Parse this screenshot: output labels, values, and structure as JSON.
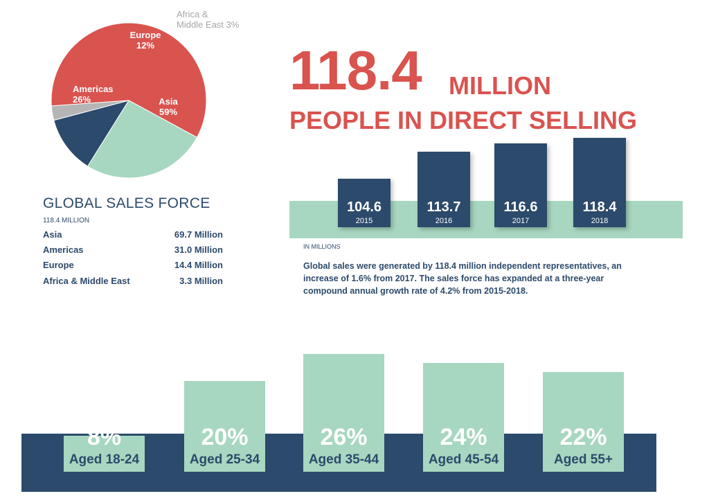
{
  "pie_chart": {
    "type": "pie",
    "slices": [
      {
        "name": "Europe",
        "value": 12,
        "color": "#2c4a6b",
        "label_name": "Europe",
        "label_pct": "12%"
      },
      {
        "name": "Africa & Middle East",
        "value": 3,
        "color": "#b5b5b5",
        "label_name": "Africa &",
        "label_pct": "Middle East 3%"
      },
      {
        "name": "Asia",
        "value": 59,
        "color": "#d9534f",
        "label_name": "Asia",
        "label_pct": "59%"
      },
      {
        "name": "Americas",
        "value": 26,
        "color": "#a7d7c0",
        "label_name": "Americas",
        "label_pct": "26%"
      }
    ]
  },
  "sales_force": {
    "title": "GLOBAL SALES FORCE",
    "total": "118.4 MILLION",
    "rows": [
      {
        "region": "Asia",
        "value": "69.7 Million"
      },
      {
        "region": "Americas",
        "value": "31.0 Million"
      },
      {
        "region": "Europe",
        "value": "14.4 Million"
      },
      {
        "region": "Africa & Middle East",
        "value": "3.3 Million"
      }
    ]
  },
  "headline": {
    "number": "118.4",
    "unit": "MILLION",
    "subtitle": "PEOPLE IN DIRECT SELLING"
  },
  "chart_data": [
    {
      "type": "pie",
      "categories": [
        "Asia",
        "Americas",
        "Europe",
        "Africa & Middle East"
      ],
      "values": [
        59,
        26,
        12,
        3
      ],
      "unit": "%"
    },
    {
      "type": "bar",
      "categories": [
        "2015",
        "2016",
        "2017",
        "2018"
      ],
      "values": [
        104.6,
        113.7,
        116.6,
        118.4
      ],
      "value_labels": [
        "104.6",
        "113.7",
        "116.6",
        "118.4"
      ],
      "note": "IN MILLIONS"
    },
    {
      "type": "bar",
      "categories": [
        "Aged 18-24",
        "Aged 25-34",
        "Aged 35-44",
        "Aged 45-54",
        "Aged 55+"
      ],
      "values": [
        8,
        20,
        26,
        24,
        22
      ],
      "value_labels": [
        "8%",
        "20%",
        "26%",
        "24%",
        "22%"
      ]
    }
  ],
  "description": "Global sales were generated by 118.4 million independent representatives, an increase of 1.6% from 2017. The sales force has expanded at a three-year compound annual growth rate of 4.2% from 2015-2018.",
  "colors": {
    "navy": "#2c4a6b",
    "mint": "#a7d7c0",
    "red": "#d9534f",
    "grey": "#b5b5b5"
  }
}
